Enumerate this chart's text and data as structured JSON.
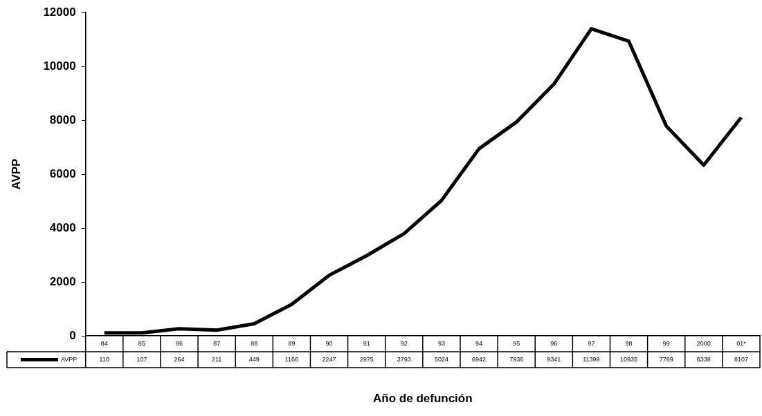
{
  "chart_data": {
    "type": "line",
    "xlabel": "Año de defunción",
    "ylabel": "AVPP",
    "categories": [
      "84",
      "85",
      "86",
      "87",
      "88",
      "89",
      "90",
      "91",
      "92",
      "93",
      "94",
      "95",
      "96",
      "97",
      "98",
      "99",
      "2000",
      "01*"
    ],
    "series": [
      {
        "name": "AVPP",
        "color": "#000000",
        "values": [
          110,
          107,
          264,
          211,
          449,
          1166,
          2247,
          2975,
          3793,
          5024,
          6942,
          7936,
          9341,
          11399,
          10935,
          7789,
          6338,
          8107
        ]
      }
    ],
    "ylim": [
      0,
      12000
    ],
    "yticks": [
      0,
      2000,
      4000,
      6000,
      8000,
      10000,
      12000
    ],
    "grid": false,
    "legend": "bottom",
    "data_labels": true,
    "marker": "none",
    "line_style": "solid"
  }
}
